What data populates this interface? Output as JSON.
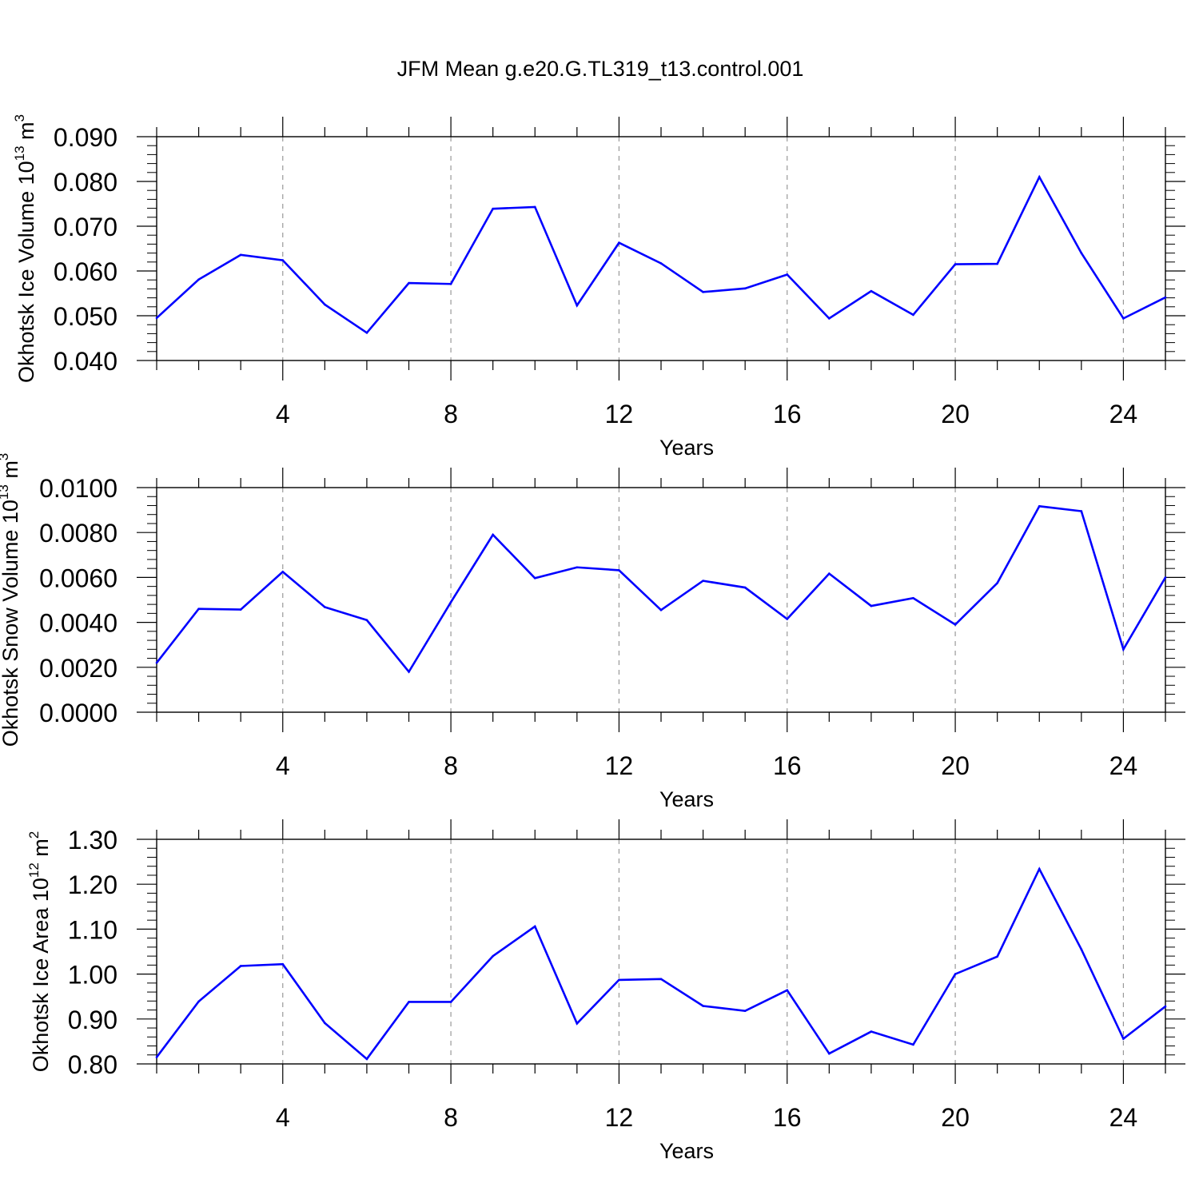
{
  "figure": {
    "title": "JFM Mean g.e20.G.TL319_t13.control.001"
  },
  "colors": {
    "series": "#0000ff",
    "axes": "#000000",
    "grid": "#999999"
  },
  "chart_data": [
    {
      "type": "line",
      "xlabel": "Years",
      "ylabel": {
        "text": "Okhotsk Ice Volume 10",
        "exp": "13",
        "unit": " m",
        "unit_exp": "3"
      },
      "xlim": [
        1,
        25
      ],
      "ylim": [
        0.04,
        0.09
      ],
      "xticks": [
        "4",
        "8",
        "12",
        "16",
        "20",
        "24"
      ],
      "yticks": [
        "0.040",
        "0.050",
        "0.060",
        "0.070",
        "0.080",
        "0.090"
      ],
      "grid": "vertical dashed at major x ticks",
      "x": [
        1,
        2,
        3,
        4,
        5,
        6,
        7,
        8,
        9,
        10,
        11,
        12,
        13,
        14,
        15,
        16,
        17,
        18,
        19,
        20,
        21,
        22,
        23,
        24,
        25
      ],
      "values": [
        0.0495,
        0.0581,
        0.0636,
        0.0624,
        0.0525,
        0.0462,
        0.0573,
        0.0571,
        0.0739,
        0.0743,
        0.0523,
        0.0663,
        0.0617,
        0.0553,
        0.0561,
        0.0592,
        0.0494,
        0.0555,
        0.0502,
        0.0615,
        0.0616,
        0.081,
        0.064,
        0.0494,
        0.0541
      ]
    },
    {
      "type": "line",
      "xlabel": "Years",
      "ylabel": {
        "text": "Okhotsk Snow Volume 10",
        "exp": "13",
        "unit": " m",
        "unit_exp": "3"
      },
      "xlim": [
        1,
        25
      ],
      "ylim": [
        0.0,
        0.01
      ],
      "xticks": [
        "4",
        "8",
        "12",
        "16",
        "20",
        "24"
      ],
      "yticks": [
        "0.0000",
        "0.0020",
        "0.0040",
        "0.0060",
        "0.0080",
        "0.0100"
      ],
      "grid": "vertical dashed at major x ticks",
      "x": [
        1,
        2,
        3,
        4,
        5,
        6,
        7,
        8,
        9,
        10,
        11,
        12,
        13,
        14,
        15,
        16,
        17,
        18,
        19,
        20,
        21,
        22,
        23,
        24,
        25
      ],
      "values": [
        0.0022,
        0.0046,
        0.00457,
        0.00625,
        0.00468,
        0.0041,
        0.0018,
        0.0049,
        0.0079,
        0.00597,
        0.00645,
        0.00632,
        0.00455,
        0.00585,
        0.00555,
        0.00415,
        0.00617,
        0.00473,
        0.00508,
        0.0039,
        0.00575,
        0.00917,
        0.00895,
        0.0028,
        0.006
      ]
    },
    {
      "type": "line",
      "xlabel": "Years",
      "ylabel": {
        "text": "Okhotsk Ice Area 10",
        "exp": "12",
        "unit": " m",
        "unit_exp": "2"
      },
      "xlim": [
        1,
        25
      ],
      "ylim": [
        0.8,
        1.3
      ],
      "xticks": [
        "4",
        "8",
        "12",
        "16",
        "20",
        "24"
      ],
      "yticks": [
        "0.80",
        "0.90",
        "1.00",
        "1.10",
        "1.20",
        "1.30"
      ],
      "grid": "vertical dashed at major x ticks",
      "x": [
        1,
        2,
        3,
        4,
        5,
        6,
        7,
        8,
        9,
        10,
        11,
        12,
        13,
        14,
        15,
        16,
        17,
        18,
        19,
        20,
        21,
        22,
        23,
        24,
        25
      ],
      "values": [
        0.815,
        0.939,
        1.018,
        1.022,
        0.891,
        0.811,
        0.938,
        0.938,
        1.04,
        1.106,
        0.89,
        0.987,
        0.989,
        0.929,
        0.918,
        0.964,
        0.823,
        0.872,
        0.843,
        1.0,
        1.039,
        1.234,
        1.055,
        0.856,
        0.928
      ]
    }
  ]
}
